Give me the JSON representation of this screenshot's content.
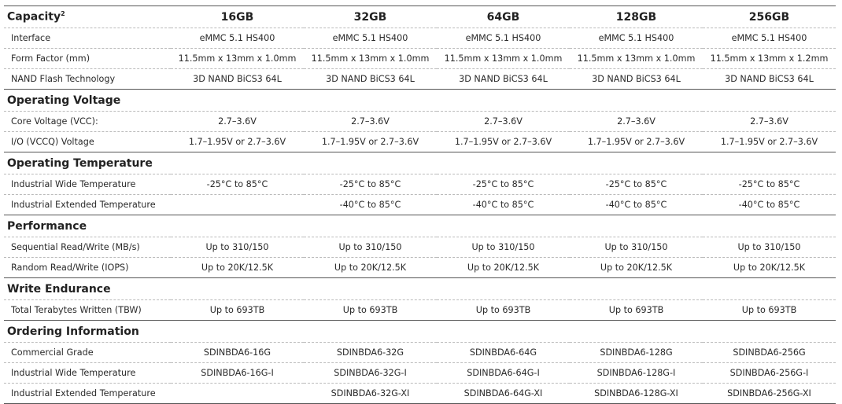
{
  "header": {
    "label": "Capacity",
    "footnote": "2",
    "capacities": [
      "16GB",
      "32GB",
      "64GB",
      "128GB",
      "256GB"
    ]
  },
  "sections": [
    {
      "title": null,
      "rows": [
        {
          "label": "Interface",
          "values": [
            "eMMC 5.1 HS400",
            "eMMC 5.1 HS400",
            "eMMC 5.1 HS400",
            "eMMC 5.1 HS400",
            "eMMC 5.1 HS400"
          ]
        },
        {
          "label": "Form Factor (mm)",
          "values": [
            "11.5mm x 13mm x 1.0mm",
            "11.5mm x 13mm x 1.0mm",
            "11.5mm x 13mm x 1.0mm",
            "11.5mm x 13mm x 1.0mm",
            "11.5mm x 13mm x 1.2mm"
          ]
        },
        {
          "label": "NAND Flash Technology",
          "values": [
            "3D NAND BiCS3 64L",
            "3D NAND BiCS3 64L",
            "3D NAND BiCS3 64L",
            "3D NAND BiCS3 64L",
            "3D NAND BiCS3 64L"
          ]
        }
      ]
    },
    {
      "title": "Operating Voltage",
      "rows": [
        {
          "label": "Core Voltage (VCC):",
          "values": [
            "2.7–3.6V",
            "2.7–3.6V",
            "2.7–3.6V",
            "2.7–3.6V",
            "2.7–3.6V"
          ]
        },
        {
          "label": "I/O (VCCQ) Voltage",
          "values": [
            "1.7–1.95V or 2.7–3.6V",
            "1.7–1.95V or 2.7–3.6V",
            "1.7–1.95V or 2.7–3.6V",
            "1.7–1.95V or 2.7–3.6V",
            "1.7–1.95V or 2.7–3.6V"
          ]
        }
      ]
    },
    {
      "title": "Operating Temperature",
      "rows": [
        {
          "label": "Industrial Wide Temperature",
          "values": [
            "-25°C to 85°C",
            "-25°C to 85°C",
            "-25°C to 85°C",
            "-25°C to 85°C",
            "-25°C to 85°C"
          ]
        },
        {
          "label": "Industrial Extended Temperature",
          "values": [
            "",
            "-40°C to 85°C",
            "-40°C to 85°C",
            "-40°C to 85°C",
            "-40°C to 85°C"
          ]
        }
      ]
    },
    {
      "title": "Performance",
      "rows": [
        {
          "label": "Sequential Read/Write (MB/s)",
          "values": [
            "Up to 310/150",
            "Up to 310/150",
            "Up to 310/150",
            "Up to 310/150",
            "Up to 310/150"
          ]
        },
        {
          "label": "Random Read/Write (IOPS)",
          "values": [
            "Up to 20K/12.5K",
            "Up to 20K/12.5K",
            "Up to 20K/12.5K",
            "Up to 20K/12.5K",
            "Up to 20K/12.5K"
          ]
        }
      ]
    },
    {
      "title": "Write Endurance",
      "rows": [
        {
          "label": "Total Terabytes Written (TBW)",
          "values": [
            "Up to 693TB",
            "Up to 693TB",
            "Up to 693TB",
            "Up to 693TB",
            "Up to 693TB"
          ]
        }
      ]
    },
    {
      "title": "Ordering Information",
      "rows": [
        {
          "label": "Commercial Grade",
          "values": [
            "SDINBDA6-16G",
            "SDINBDA6-32G",
            "SDINBDA6-64G",
            "SDINBDA6-128G",
            "SDINBDA6-256G"
          ]
        },
        {
          "label": "Industrial Wide Temperature",
          "values": [
            "SDINBDA6-16G-I",
            "SDINBDA6-32G-I",
            "SDINBDA6-64G-I",
            "SDINBDA6-128G-I",
            "SDINBDA6-256G-I"
          ]
        },
        {
          "label": "Industrial Extended Temperature",
          "values": [
            "",
            "SDINBDA6-32G-XI",
            "SDINBDA6-64G-XI",
            "SDINBDA6-128G-XI",
            "SDINBDA6-256G-XI"
          ]
        }
      ]
    }
  ]
}
